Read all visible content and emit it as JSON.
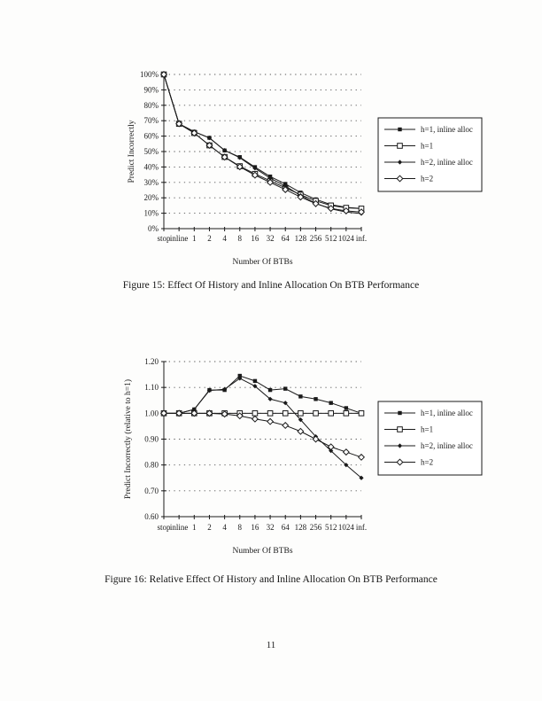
{
  "page": {
    "number": "11"
  },
  "figures": [
    {
      "caption": "Figure 15: Effect Of History and Inline Allocation On BTB Performance"
    },
    {
      "caption": "Figure 16: Relative Effect Of History and Inline Allocation On BTB Performance"
    }
  ],
  "chart_data": [
    {
      "type": "line",
      "title": "",
      "xlabel": "Number Of BTBs",
      "ylabel": "Predict Incorrectly",
      "categories": [
        "stop",
        "inline",
        "1",
        "2",
        "4",
        "8",
        "16",
        "32",
        "64",
        "128",
        "256",
        "512",
        "1024",
        "inf."
      ],
      "ylim": [
        0,
        100
      ],
      "ytick_step": 10,
      "ytick_format": "percent",
      "grid": "dashed-horizontal",
      "legend_position": "right",
      "series": [
        {
          "name": "h=1, inline alloc",
          "marker": "square-filled",
          "values": [
            100,
            68,
            62.9,
            58.9,
            50.7,
            46.4,
            39.9,
            33.8,
            29.0,
            23.4,
            19.0,
            15.6,
            13.8,
            13.1
          ]
        },
        {
          "name": "h=1",
          "marker": "square-open",
          "values": [
            100,
            68,
            62.0,
            54.0,
            46.5,
            40.5,
            35.5,
            31.0,
            26.5,
            22.0,
            18.0,
            15.0,
            13.5,
            13.0
          ]
        },
        {
          "name": "h=2, inline alloc",
          "marker": "diamond-filled",
          "values": [
            100,
            68,
            62.9,
            58.8,
            50.8,
            46.0,
            39.2,
            32.7,
            27.6,
            21.5,
            16.4,
            12.8,
            10.8,
            9.8
          ]
        },
        {
          "name": "h=2",
          "marker": "diamond-open",
          "values": [
            100,
            68,
            62.0,
            54.0,
            46.4,
            40.1,
            34.7,
            30.0,
            25.3,
            20.5,
            16.2,
            13.1,
            11.5,
            10.8
          ]
        }
      ]
    },
    {
      "type": "line",
      "title": "",
      "xlabel": "Number Of BTBs",
      "ylabel": "Predict Incorrectly (relative to h=1)",
      "categories": [
        "stop",
        "inline",
        "1",
        "2",
        "4",
        "8",
        "16",
        "32",
        "64",
        "128",
        "256",
        "512",
        "1024",
        "inf."
      ],
      "ylim": [
        0.6,
        1.2
      ],
      "ytick_step": 0.1,
      "ytick_format": "fixed2",
      "grid": "dashed-horizontal",
      "legend_position": "right",
      "series": [
        {
          "name": "h=1, inline alloc",
          "marker": "square-filled",
          "values": [
            1.0,
            1.0,
            1.015,
            1.09,
            1.09,
            1.145,
            1.125,
            1.09,
            1.095,
            1.065,
            1.055,
            1.04,
            1.02,
            1.0
          ]
        },
        {
          "name": "h=1",
          "marker": "square-open",
          "values": [
            1.0,
            1.0,
            1.0,
            1.0,
            1.0,
            1.0,
            1.0,
            1.0,
            1.0,
            1.0,
            1.0,
            1.0,
            1.0,
            1.0
          ]
        },
        {
          "name": "h=2, inline alloc",
          "marker": "diamond-filled",
          "values": [
            1.0,
            1.0,
            1.015,
            1.088,
            1.093,
            1.135,
            1.105,
            1.055,
            1.04,
            0.975,
            0.91,
            0.855,
            0.8,
            0.75
          ]
        },
        {
          "name": "h=2",
          "marker": "diamond-open",
          "values": [
            1.0,
            1.0,
            1.0,
            1.0,
            0.997,
            0.99,
            0.978,
            0.968,
            0.953,
            0.93,
            0.9,
            0.87,
            0.85,
            0.83
          ]
        }
      ]
    }
  ],
  "colors": {
    "ink": "#1a1a1a",
    "grid": "#555555",
    "paper": "#fdfdfc"
  }
}
